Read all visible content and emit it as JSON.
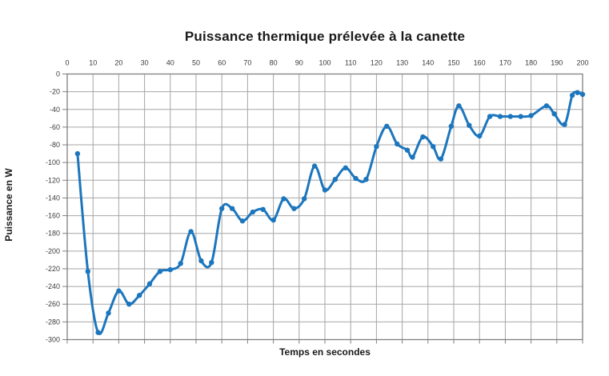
{
  "title": "Puissance thermique prélevée à la canette",
  "colors": {
    "series_blue": "#1C76BD",
    "gridline_gray": "#A6A6A6",
    "axis_gray": "#7F7F7F",
    "tick_text": "#3B3B3B",
    "title_text": "#1A1A1A",
    "background": "#FFFFFF"
  },
  "chart_data": {
    "type": "line",
    "title": "Puissance thermique prélevée à la canette",
    "xlabel": "Temps en secondes",
    "ylabel": "Puissance en W",
    "xlim": [
      0,
      200
    ],
    "ylim": [
      -300,
      0
    ],
    "x_ticks": [
      0,
      10,
      20,
      30,
      40,
      50,
      60,
      70,
      80,
      90,
      100,
      110,
      120,
      130,
      140,
      150,
      160,
      170,
      180,
      190,
      200
    ],
    "y_ticks": [
      0,
      -20,
      -40,
      -60,
      -80,
      -100,
      -120,
      -140,
      -160,
      -180,
      -200,
      -220,
      -240,
      -260,
      -280,
      -300
    ],
    "grid": true,
    "legend_position": "none",
    "series": [
      {
        "name": "Puissance thermique",
        "color": "#1C76BD",
        "marker": "circle",
        "smooth": true,
        "points": [
          [
            4,
            -90
          ],
          [
            8,
            -223
          ],
          [
            12,
            -292
          ],
          [
            16,
            -270
          ],
          [
            20,
            -245
          ],
          [
            24,
            -260
          ],
          [
            28,
            -250
          ],
          [
            32,
            -237
          ],
          [
            36,
            -223
          ],
          [
            40,
            -221
          ],
          [
            44,
            -214
          ],
          [
            48,
            -178
          ],
          [
            52,
            -211
          ],
          [
            56,
            -213
          ],
          [
            60,
            -152
          ],
          [
            64,
            -152
          ],
          [
            68,
            -166
          ],
          [
            72,
            -156
          ],
          [
            76,
            -153
          ],
          [
            80,
            -165
          ],
          [
            84,
            -141
          ],
          [
            88,
            -152
          ],
          [
            92,
            -141
          ],
          [
            96,
            -104
          ],
          [
            100,
            -131
          ],
          [
            104,
            -119
          ],
          [
            108,
            -106
          ],
          [
            112,
            -118
          ],
          [
            116,
            -119
          ],
          [
            120,
            -82
          ],
          [
            124,
            -59
          ],
          [
            128,
            -79
          ],
          [
            132,
            -86
          ],
          [
            134,
            -94
          ],
          [
            138,
            -71
          ],
          [
            142,
            -82
          ],
          [
            145,
            -96
          ],
          [
            149,
            -59
          ],
          [
            152,
            -36
          ],
          [
            156,
            -58
          ],
          [
            160,
            -70
          ],
          [
            164,
            -48
          ],
          [
            168,
            -48
          ],
          [
            172,
            -48
          ],
          [
            176,
            -48
          ],
          [
            180,
            -47
          ],
          [
            186,
            -36
          ],
          [
            189,
            -45
          ],
          [
            193,
            -57
          ],
          [
            196,
            -24
          ],
          [
            198,
            -21
          ],
          [
            200,
            -23
          ]
        ]
      }
    ]
  }
}
